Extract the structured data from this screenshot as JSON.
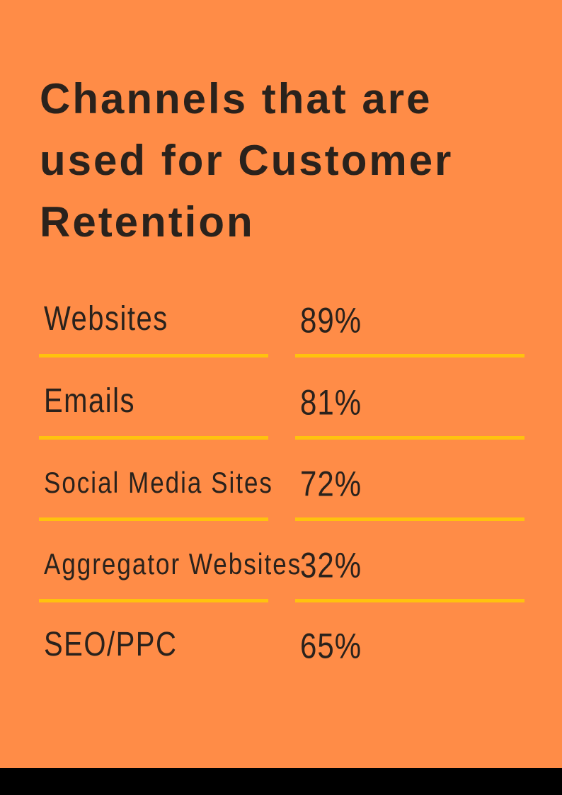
{
  "title": "Channels that are used for Customer Retention",
  "rows": [
    {
      "label": "Websites",
      "value": "89%"
    },
    {
      "label": "Emails",
      "value": "81%"
    },
    {
      "label": "Social Media Sites",
      "value": "72%"
    },
    {
      "label": "Aggregator Websites",
      "value": "32%"
    },
    {
      "label": "SEO/PPC",
      "value": "65%"
    }
  ],
  "colors": {
    "background": "#FF8C47",
    "divider": "#FFC20E",
    "text": "#2a221c",
    "footer": "#000000"
  }
}
